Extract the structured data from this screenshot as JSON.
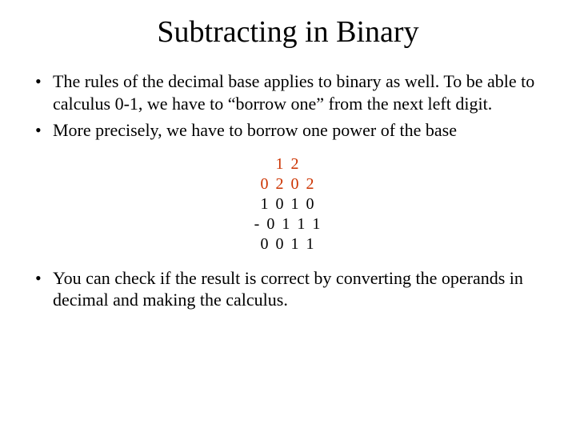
{
  "title": "Subtracting in Binary",
  "bullets": {
    "b1": "The rules of the decimal base applies to binary as well. To be able to calculus 0-1, we have to “borrow one” from the next left digit.",
    "b2": "More precisely, we have to borrow one power of the base",
    "b3": "You can check if the result is correct by converting the operands in decimal and making the calculus."
  },
  "example": {
    "rows": {
      "r1": "1 2",
      "r2": "0 2 0 2",
      "r3": "1 0 1 0",
      "r4": "- 0 1 1 1",
      "r5": "0 0 1 1"
    },
    "color_red": "#cc3300",
    "font_size": 20
  },
  "colors": {
    "text": "#000000",
    "background": "#ffffff"
  },
  "typography": {
    "title_fontsize": 38,
    "body_fontsize": 22,
    "font_family": "Times New Roman"
  }
}
